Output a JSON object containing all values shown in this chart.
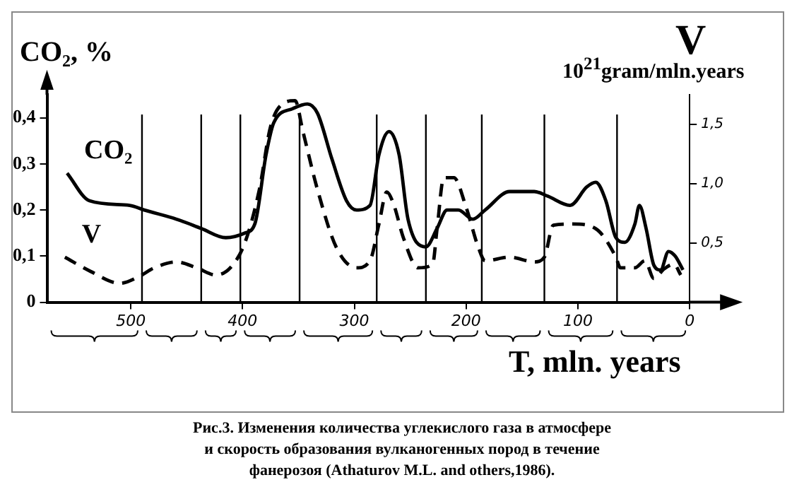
{
  "chart_data": {
    "type": "line",
    "ylabel": "CO₂, %",
    "y2label": "V",
    "xlabel": "T, mln. years",
    "annotations": [
      "10$^{21}$gram/mln.years",
      "Рис.3. Изменения количества углекислого газа в атмосфере\nи скорость образования вулканогенных пород в течение\nфанерозоя (Athaturov M.L. and others,1986)."
    ],
    "xlim": [
      575,
      0
    ],
    "xticks": [
      500,
      400,
      300,
      200,
      100,
      0
    ],
    "ylim": [
      0,
      0.45
    ],
    "yticks": [
      0,
      {
        "value": 0.1,
        "label": "0,1"
      },
      {
        "value": 0.2,
        "label": "0,2"
      },
      {
        "value": 0.3,
        "label": "0,3"
      },
      {
        "value": 0.4,
        "label": "0,4"
      }
    ],
    "y2lim": [
      0,
      1.75
    ],
    "y2ticks": [
      {
        "value": 0.5,
        "label": "0,5"
      },
      {
        "value": 1,
        "label": "1,0"
      },
      {
        "value": 1.5,
        "label": "1,5"
      }
    ],
    "grid": false,
    "legend": false,
    "marker": "none",
    "ref_lines": [
      {
        "axis": "x",
        "value": 490
      },
      {
        "axis": "x",
        "value": 437
      },
      {
        "axis": "x",
        "value": 402
      },
      {
        "axis": "x",
        "value": 349
      },
      {
        "axis": "x",
        "value": 280
      },
      {
        "axis": "x",
        "value": 236
      },
      {
        "axis": "x",
        "value": 186
      },
      {
        "axis": "x",
        "value": 130
      },
      {
        "axis": "x",
        "value": 65
      }
    ],
    "series": [
      {
        "name": "CO₂",
        "color": "#000000",
        "line_style": "solid",
        "x": [
          557,
          537,
          501,
          488,
          459,
          437,
          415,
          398,
          389,
          379,
          372,
          355,
          342,
          333,
          320,
          307,
          298,
          286,
          278,
          269,
          260,
          252,
          236,
          226,
          217,
          207,
          194,
          183,
          161,
          139,
          127,
          107,
          92,
          84,
          75,
          66,
          58,
          49,
          45,
          39,
          32,
          26,
          19,
          13,
          6
        ],
        "values": [
          0.28,
          0.22,
          0.21,
          0.2,
          0.18,
          0.16,
          0.14,
          0.15,
          0.17,
          0.32,
          0.39,
          0.42,
          0.43,
          0.41,
          0.31,
          0.22,
          0.2,
          0.21,
          0.32,
          0.37,
          0.32,
          0.18,
          0.12,
          0.16,
          0.2,
          0.2,
          0.18,
          0.2,
          0.24,
          0.24,
          0.23,
          0.21,
          0.25,
          0.26,
          0.22,
          0.14,
          0.13,
          0.17,
          0.21,
          0.16,
          0.08,
          0.07,
          0.11,
          0.1,
          0.07
        ]
      },
      {
        "name": "V",
        "color": "#000000",
        "line_style": "dashed",
        "axis": "y2",
        "x": [
          559,
          536,
          510,
          492,
          479,
          459,
          441,
          424,
          411,
          398,
          385,
          375,
          363,
          353,
          346,
          333,
          316,
          298,
          286,
          278,
          271,
          265,
          256,
          243,
          230,
          226,
          220,
          211,
          200,
          189,
          183,
          161,
          139,
          130,
          122,
          105,
          84,
          66,
          62,
          49,
          40,
          32,
          23,
          14,
          8
        ],
        "values": [
          0.38,
          0.26,
          0.16,
          0.22,
          0.29,
          0.34,
          0.29,
          0.23,
          0.29,
          0.5,
          0.95,
          1.48,
          1.68,
          1.7,
          1.44,
          0.95,
          0.46,
          0.29,
          0.35,
          0.66,
          0.93,
          0.83,
          0.54,
          0.29,
          0.32,
          0.62,
          1.05,
          1.05,
          0.8,
          0.46,
          0.35,
          0.38,
          0.34,
          0.38,
          0.65,
          0.66,
          0.62,
          0.38,
          0.29,
          0.29,
          0.35,
          0.2,
          0.28,
          0.32,
          0.23
        ]
      }
    ]
  }
}
